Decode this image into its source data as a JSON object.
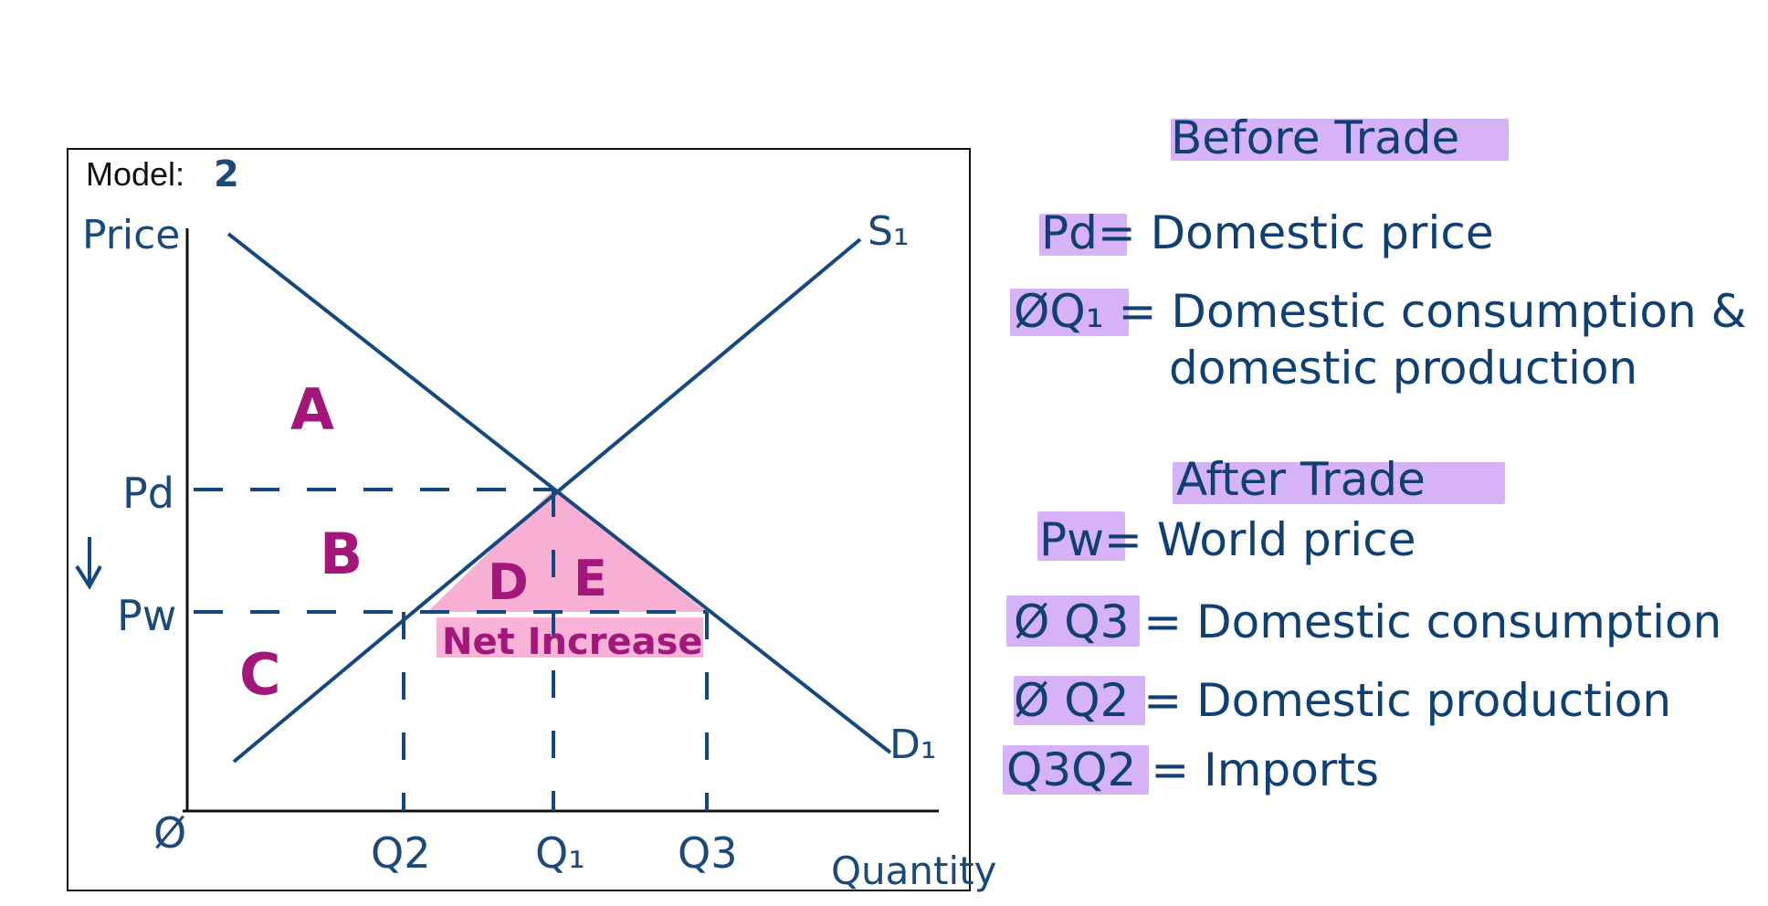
{
  "graph": {
    "model_label": "Model:",
    "model_number": "2",
    "y_axis_label": "Price",
    "x_axis_label": "Quantity",
    "origin_label": "Ø",
    "supply_label": "S₁",
    "demand_label": "D₁",
    "price_labels": {
      "pd": "Pd",
      "pw": "Pw"
    },
    "quantity_labels": {
      "q2": "Q2",
      "q1": "Q₁",
      "q3": "Q3"
    },
    "region_labels": {
      "a": "A",
      "b": "B",
      "c": "C",
      "d": "D",
      "e": "E"
    },
    "net_increase": "Net Increase",
    "price_arrow": "↓",
    "colors": {
      "line": "#15497d",
      "region_text": "#a3177a",
      "shade": "#f7a6cf"
    }
  },
  "notes": {
    "before_trade": "Before Trade",
    "pd_line": "Pd= Domestic price",
    "oq1_line_1": "ØQ₁ = Domestic consumption &",
    "oq1_line_2": "domestic production",
    "after_trade": "After Trade",
    "pw_line": "Pw= World price",
    "oq3_line": "Ø Q3 = Domestic consumption",
    "oq2_line": "Ø Q2 = Domestic production",
    "q3q2_line": "Q3Q2 = Imports",
    "highlight_color": "#d6b3f7"
  }
}
